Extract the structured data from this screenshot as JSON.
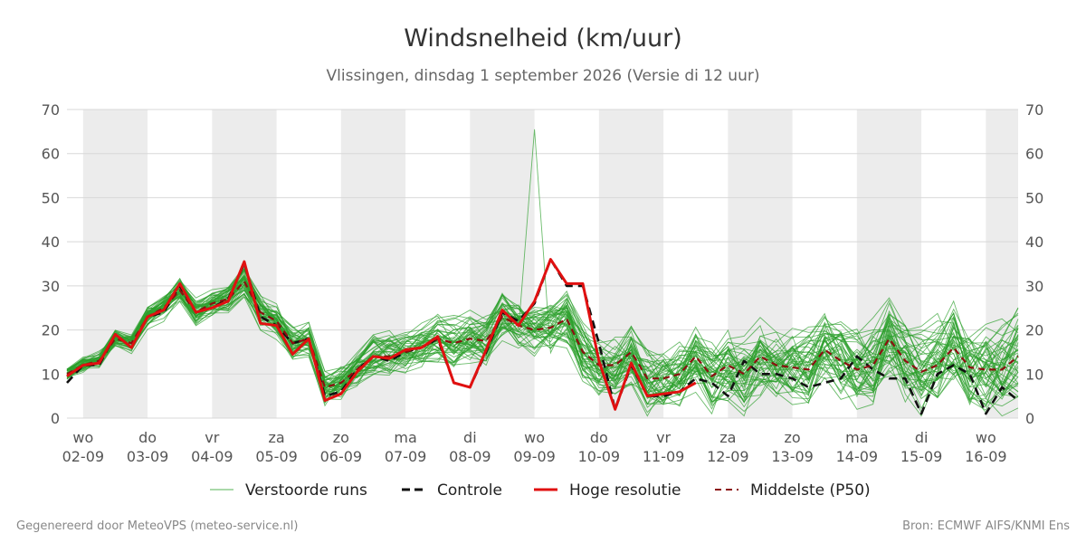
{
  "title": "Windsnelheid (km/uur)",
  "subtitle": "Vlissingen, dinsdag  1 september 2026 (Versie di 12 uur)",
  "footer_left": "Gegenereerd door MeteoVPS (meteo-service.nl)",
  "footer_right": "Bron: ECMWF AIFS/KNMI Ens",
  "colors": {
    "ensemble": "#2ca02c",
    "control": "#111111",
    "high_res": "#e01010",
    "median": "#8b1010",
    "band": "#ececec",
    "grid": "#d8d8d8"
  },
  "chart_data": {
    "type": "line",
    "title": "Windsnelheid (km/uur)",
    "xlabel": "",
    "ylabel": "",
    "ylim": [
      0,
      70
    ],
    "yticks": [
      0,
      10,
      20,
      30,
      40,
      50,
      60,
      70
    ],
    "grid": true,
    "legend_position": "bottom",
    "x_range_days": [
      -0.25,
      14.5
    ],
    "x_ticks": [
      {
        "day": 0,
        "weekday": "wo",
        "date": "02-09"
      },
      {
        "day": 1,
        "weekday": "do",
        "date": "03-09"
      },
      {
        "day": 2,
        "weekday": "vr",
        "date": "04-09"
      },
      {
        "day": 3,
        "weekday": "za",
        "date": "05-09"
      },
      {
        "day": 4,
        "weekday": "zo",
        "date": "06-09"
      },
      {
        "day": 5,
        "weekday": "ma",
        "date": "07-09"
      },
      {
        "day": 6,
        "weekday": "di",
        "date": "08-09"
      },
      {
        "day": 7,
        "weekday": "wo",
        "date": "09-09"
      },
      {
        "day": 8,
        "weekday": "do",
        "date": "10-09"
      },
      {
        "day": 9,
        "weekday": "vr",
        "date": "11-09"
      },
      {
        "day": 10,
        "weekday": "za",
        "date": "12-09"
      },
      {
        "day": 11,
        "weekday": "zo",
        "date": "13-09"
      },
      {
        "day": 12,
        "weekday": "ma",
        "date": "14-09"
      },
      {
        "day": 13,
        "weekday": "di",
        "date": "15-09"
      },
      {
        "day": 14,
        "weekday": "wo",
        "date": "16-09"
      }
    ],
    "series": [
      {
        "name": "Controle",
        "style": "dashed",
        "x": [
          -0.25,
          0,
          0.25,
          0.5,
          0.75,
          1,
          1.25,
          1.5,
          1.75,
          2,
          2.25,
          2.5,
          2.75,
          3,
          3.25,
          3.5,
          3.75,
          4,
          4.25,
          4.5,
          4.75,
          5,
          5.25,
          5.5,
          5.75,
          6,
          6.25,
          6.5,
          6.75,
          7,
          7.25,
          7.5,
          7.75,
          8,
          8.25,
          8.5,
          8.75,
          9,
          9.25,
          9.5,
          9.75,
          10,
          10.25,
          10.5,
          10.75,
          11,
          11.25,
          11.5,
          11.75,
          12,
          12.25,
          12.5,
          12.75,
          13,
          13.25,
          13.5,
          13.75,
          14,
          14.25,
          14.5
        ],
        "values": [
          8,
          12,
          12,
          19,
          16,
          23,
          24,
          30,
          24,
          25,
          27,
          35,
          23,
          21,
          17,
          18,
          5,
          6,
          11,
          14,
          13,
          15,
          16,
          18,
          8,
          7,
          15,
          24,
          22,
          26,
          36,
          30,
          30,
          17,
          2,
          12,
          5,
          5,
          6,
          9,
          8,
          5,
          13,
          10,
          10,
          9,
          7,
          8,
          9,
          14,
          11,
          9,
          9,
          1,
          10,
          12,
          10,
          1,
          7,
          4
        ]
      },
      {
        "name": "Hoge resolutie",
        "style": "solid",
        "x": [
          -0.25,
          0,
          0.25,
          0.5,
          0.75,
          1,
          1.25,
          1.5,
          1.75,
          2,
          2.25,
          2.5,
          2.75,
          3,
          3.25,
          3.5,
          3.75,
          4,
          4.25,
          4.5,
          4.75,
          5,
          5.25,
          5.5,
          5.75,
          6,
          6.25,
          6.5,
          6.75,
          7,
          7.25,
          7.5,
          7.75,
          8,
          8.25,
          8.5,
          8.75,
          9,
          9.25,
          9.5
        ],
        "values": [
          9.5,
          12,
          12.5,
          19,
          16,
          23,
          24.5,
          30.5,
          24,
          25,
          26.5,
          35.5,
          21.5,
          21,
          14.5,
          18,
          4,
          5.5,
          10.5,
          14,
          13.5,
          15.5,
          16,
          18.5,
          8,
          7,
          15.5,
          24.5,
          21,
          26.5,
          36,
          30.5,
          30.5,
          13,
          2,
          12.5,
          5,
          5.5,
          6,
          8
        ]
      },
      {
        "name": "Middelste (P50)",
        "style": "dashed",
        "x": [
          -0.25,
          0,
          0.25,
          0.5,
          0.75,
          1,
          1.25,
          1.5,
          1.75,
          2,
          2.25,
          2.5,
          2.75,
          3,
          3.25,
          3.5,
          3.75,
          4,
          4.25,
          4.5,
          4.75,
          5,
          5.25,
          5.5,
          5.75,
          6,
          6.25,
          6.5,
          6.75,
          7,
          7.25,
          7.5,
          7.75,
          8,
          8.25,
          8.5,
          8.75,
          9,
          9.25,
          9.5,
          9.75,
          10,
          10.25,
          10.5,
          10.75,
          11,
          11.25,
          11.5,
          11.75,
          12,
          12.25,
          12.5,
          12.75,
          13,
          13.25,
          13.5,
          13.75,
          14,
          14.25,
          14.5
        ],
        "values": [
          10,
          12,
          13,
          18,
          17,
          23,
          25,
          29,
          24,
          26,
          27,
          31,
          24,
          22,
          17,
          18,
          7,
          8,
          11,
          14,
          14,
          15,
          16,
          18,
          17,
          18,
          17.5,
          23,
          21,
          20,
          20.5,
          22.5,
          15,
          12,
          12,
          15,
          9,
          9,
          10,
          14,
          9.5,
          12,
          10,
          14,
          12,
          11.5,
          11,
          15.5,
          13,
          11,
          12,
          18,
          13,
          10.5,
          12,
          16,
          11.5,
          11,
          11,
          14
        ]
      }
    ],
    "ensemble": {
      "name": "Verstoorde runs",
      "x_start": -0.25,
      "x_step": 0.25,
      "member_count": 50,
      "approx_max_value": 65.5
    }
  },
  "legend": [
    {
      "label": "Verstoorde runs",
      "color": "#2ca02c",
      "style": "thin"
    },
    {
      "label": "Controle",
      "color": "#111111",
      "style": "dashed"
    },
    {
      "label": "Hoge resolutie",
      "color": "#e01010",
      "style": "solid"
    },
    {
      "label": "Middelste (P50)",
      "color": "#8b1010",
      "style": "dashed"
    }
  ]
}
